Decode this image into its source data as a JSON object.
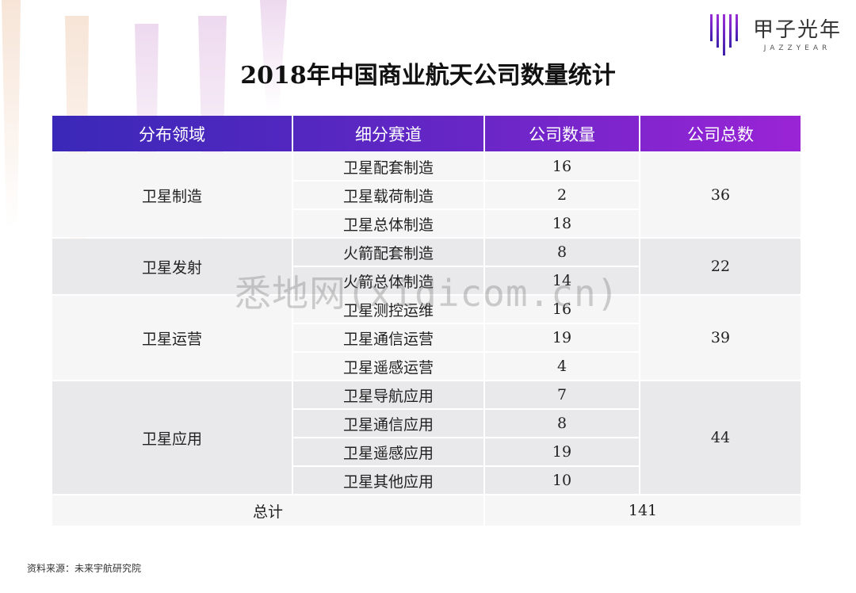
{
  "title": "2018年中国商业航天公司数量统计",
  "logo": {
    "cn": "甲子光年",
    "en": "JAZZYEAR"
  },
  "colors": {
    "header_start": "#3a28b8",
    "header_end": "#9a24d6",
    "accent": "#7a2ad0"
  },
  "chart_data": {
    "type": "table",
    "title": "2018年中国商业航天公司数量统计",
    "columns": [
      "分布领域",
      "细分赛道",
      "公司数量",
      "公司总数"
    ],
    "groups": [
      {
        "domain": "卫星制造",
        "total": "36",
        "rows": [
          {
            "track": "卫星配套制造",
            "count": "16"
          },
          {
            "track": "卫星载荷制造",
            "count": "2"
          },
          {
            "track": "卫星总体制造",
            "count": "18"
          }
        ]
      },
      {
        "domain": "卫星发射",
        "total": "22",
        "rows": [
          {
            "track": "火箭配套制造",
            "count": "8"
          },
          {
            "track": "火箭总体制造",
            "count": "14"
          }
        ]
      },
      {
        "domain": "卫星运营",
        "total": "39",
        "rows": [
          {
            "track": "卫星测控运维",
            "count": "16"
          },
          {
            "track": "卫星通信运营",
            "count": "19"
          },
          {
            "track": "卫星遥感运营",
            "count": "4"
          }
        ]
      },
      {
        "domain": "卫星应用",
        "total": "44",
        "rows": [
          {
            "track": "卫星导航应用",
            "count": "7"
          },
          {
            "track": "卫星通信应用",
            "count": "8"
          },
          {
            "track": "卫星遥感应用",
            "count": "19"
          },
          {
            "track": "卫星其他应用",
            "count": "10"
          }
        ]
      }
    ],
    "grand_total_label": "总计",
    "grand_total": "141"
  },
  "source": "资料来源：未来宇航研究院",
  "watermark": "悉地网(xidicom.cn)"
}
